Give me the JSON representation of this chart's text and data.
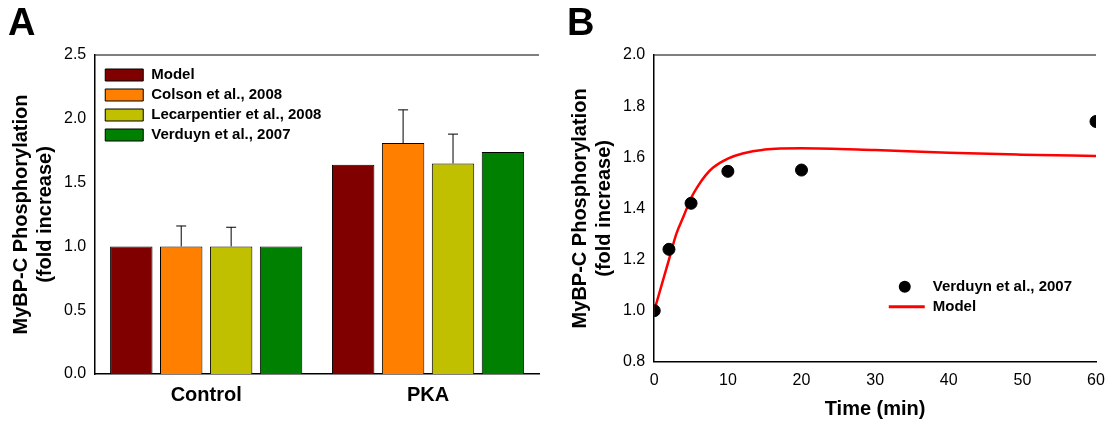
{
  "chart_data": [
    {
      "type": "bar",
      "title": "A",
      "ylabel": "MyBP-C Phosphorylation\n(fold increase)",
      "categories": [
        "Control",
        "PKA"
      ],
      "ylim": [
        0,
        2.5
      ],
      "yticks": [
        {
          "value": 0,
          "label": "0.0"
        },
        0.5,
        {
          "value": 1,
          "label": "1.0"
        },
        1.5,
        {
          "value": 2,
          "label": "2.0"
        },
        2.5
      ],
      "grid": false,
      "legend": "top left",
      "series": [
        {
          "name": "Model",
          "color": "#800000",
          "values": [
            1.0,
            1.64
          ]
        },
        {
          "name": "Colson et al., 2008",
          "color": "#ff8000",
          "values": [
            1.0,
            1.81
          ],
          "errors": [
            [
              1.0,
              1.16
            ],
            [
              1.81,
              2.07
            ]
          ]
        },
        {
          "name": "Lecarpentier et al., 2008",
          "color": "#c0c000",
          "values": [
            1.0,
            1.65
          ],
          "errors": [
            [
              1.0,
              1.15
            ],
            [
              1.65,
              1.88
            ]
          ]
        },
        {
          "name": "Verduyn et al., 2007",
          "color": "#008000",
          "values": [
            1.0,
            1.74
          ]
        }
      ]
    },
    {
      "type": "scatter",
      "title": "B",
      "xlabel": "Time (min)",
      "ylabel": "MyBP-C Phosphorylation\n(fold increase)",
      "xlim": [
        0,
        60
      ],
      "xticks": [
        0,
        10,
        20,
        30,
        40,
        50,
        60
      ],
      "ylim": [
        0.8,
        2.0
      ],
      "yticks": [
        0.8,
        {
          "value": 1,
          "label": "1.0"
        },
        1.2,
        1.4,
        1.6,
        1.8,
        {
          "value": 2,
          "label": "2.0"
        }
      ],
      "grid": false,
      "legend": "bottom right",
      "series": [
        {
          "name": "Verduyn et al., 2007",
          "color": "#000000",
          "marker": "circle",
          "x": [
            0,
            2,
            5,
            10,
            20,
            60
          ],
          "values": [
            1.0,
            1.24,
            1.42,
            1.545,
            1.55,
            1.74
          ]
        },
        {
          "name": "Model",
          "type": "line",
          "color": "#ff0000",
          "marker": "none",
          "x": [
            0,
            1,
            2,
            3,
            4,
            5,
            6,
            7,
            8,
            10,
            12,
            15,
            20,
            30,
            40,
            50,
            60
          ],
          "values": [
            1.0,
            1.1,
            1.2,
            1.3,
            1.37,
            1.44,
            1.49,
            1.53,
            1.56,
            1.595,
            1.615,
            1.63,
            1.635,
            1.628,
            1.618,
            1.61,
            1.605
          ]
        }
      ]
    }
  ]
}
